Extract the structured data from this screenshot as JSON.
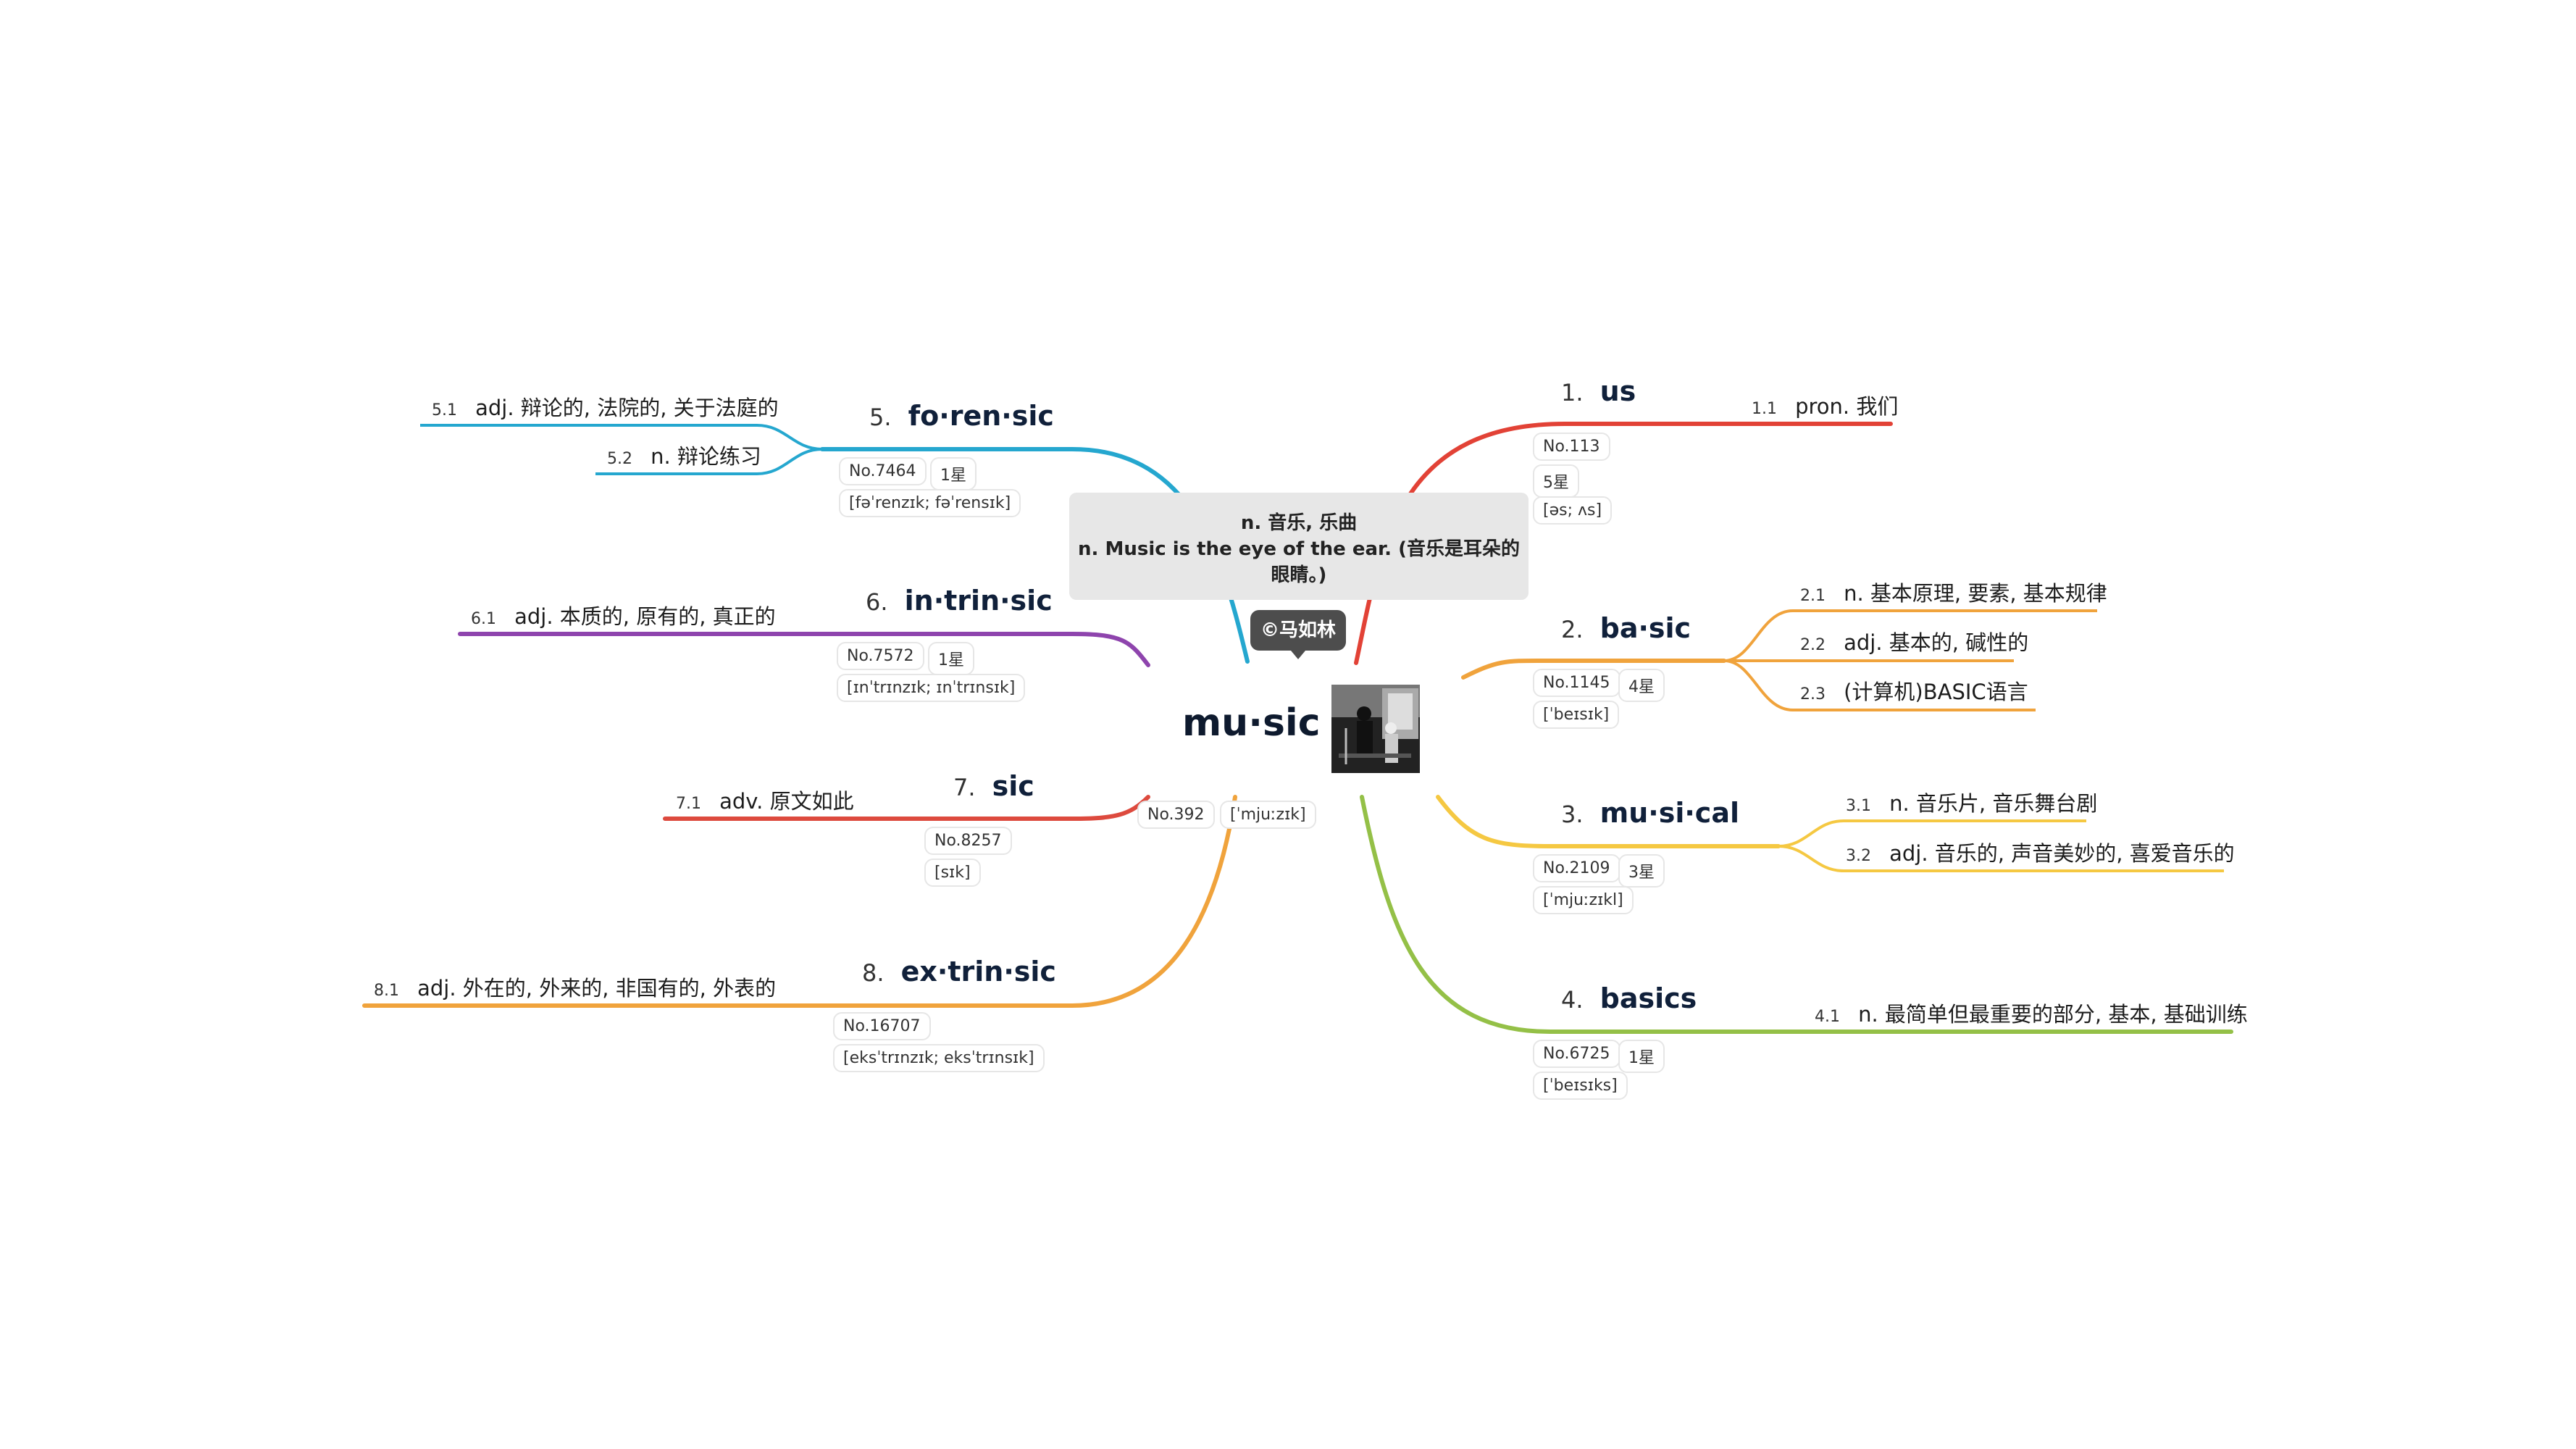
{
  "center": {
    "word": "mu·sic",
    "no": "No.392",
    "phonetic": "[ˈmjuːzɪk]",
    "definition_line1": "n. 音乐, 乐曲",
    "definition_line2": "n. Music is the eye of the ear. (音乐是耳朵的",
    "definition_line3": "眼睛。)",
    "copyright": "©马如林",
    "image_icon": "concert-photo-icon"
  },
  "topics": [
    {
      "num": "1.",
      "word": "us",
      "color": "#e24236",
      "badges": [
        "No.113",
        "5星",
        "[əs; ʌs]"
      ],
      "details": [
        {
          "num": "1.1",
          "text": "pron. 我们"
        }
      ]
    },
    {
      "num": "2.",
      "word": "ba·sic",
      "color": "#f0a33c",
      "badges": [
        "No.1145",
        "4星",
        "[ˈbeɪsɪk]"
      ],
      "details": [
        {
          "num": "2.1",
          "text": "n. 基本原理, 要素, 基本规律"
        },
        {
          "num": "2.2",
          "text": "adj. 基本的, 碱性的"
        },
        {
          "num": "2.3",
          "text": "(计算机)BASIC语言"
        }
      ]
    },
    {
      "num": "3.",
      "word": "mu·si·cal",
      "color": "#f5c842",
      "badges": [
        "No.2109",
        "3星",
        "[ˈmjuːzɪkl]"
      ],
      "details": [
        {
          "num": "3.1",
          "text": "n. 音乐片, 音乐舞台剧"
        },
        {
          "num": "3.2",
          "text": "adj. 音乐的, 声音美妙的, 喜爱音乐的"
        }
      ]
    },
    {
      "num": "4.",
      "word": "basics",
      "color": "#94c047",
      "badges": [
        "No.6725",
        "1星",
        "[ˈbeɪsɪks]"
      ],
      "details": [
        {
          "num": "4.1",
          "text": "n. 最简单但最重要的部分, 基本, 基础训练"
        }
      ]
    },
    {
      "num": "5.",
      "word": "fo·ren·sic",
      "color": "#25a7cf",
      "badges": [
        "No.7464",
        "1星",
        "[fəˈrenzɪk; fəˈrensɪk]"
      ],
      "details": [
        {
          "num": "5.1",
          "text": "adj. 辩论的, 法院的, 关于法庭的"
        },
        {
          "num": "5.2",
          "text": "n. 辩论练习"
        }
      ]
    },
    {
      "num": "6.",
      "word": "in·trin·sic",
      "color": "#8e44ad",
      "badges": [
        "No.7572",
        "1星",
        "[ɪnˈtrɪnzɪk; ɪnˈtrɪnsɪk]"
      ],
      "details": [
        {
          "num": "6.1",
          "text": "adj. 本质的, 原有的, 真正的"
        }
      ]
    },
    {
      "num": "7.",
      "word": "sic",
      "color": "#dd4a3e",
      "badges": [
        "No.8257",
        "[sɪk]"
      ],
      "details": [
        {
          "num": "7.1",
          "text": "adv. 原文如此"
        }
      ]
    },
    {
      "num": "8.",
      "word": "ex·trin·sic",
      "color": "#f0a33c",
      "badges": [
        "No.16707",
        "[eksˈtrɪnzɪk; eksˈtrɪnsɪk]"
      ],
      "details": [
        {
          "num": "8.1",
          "text": "adj. 外在的, 外来的, 非国有的, 外表的"
        }
      ]
    }
  ]
}
